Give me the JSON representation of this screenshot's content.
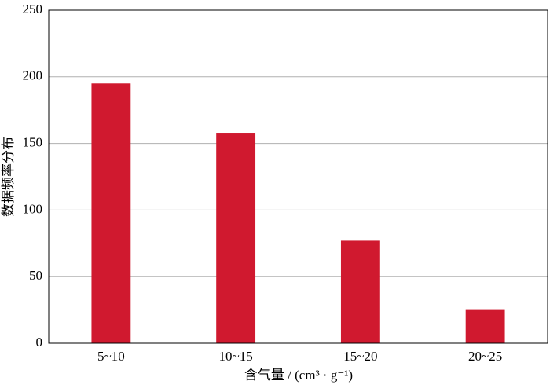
{
  "chart_data": {
    "type": "bar",
    "y_label": "数据频率分布",
    "x_label": "含气量 / (cm³ · g⁻¹)",
    "categories": [
      "5~10",
      "10~15",
      "15~20",
      "20~25"
    ],
    "values": [
      195,
      158,
      77,
      25
    ],
    "color": "#d0192f",
    "ylim": [
      0,
      250
    ],
    "yticks": [
      0,
      50,
      100,
      150,
      200,
      250
    ],
    "grid": true
  }
}
